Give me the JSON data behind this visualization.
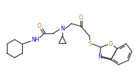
{
  "bg_color": "#ffffff",
  "line_color": "#333333",
  "atom_colors": {
    "O": "#cc6600",
    "N": "#0000cc",
    "S": "#999900",
    "C": "#333333"
  },
  "figsize": [
    1.99,
    1.08
  ],
  "dpi": 100
}
